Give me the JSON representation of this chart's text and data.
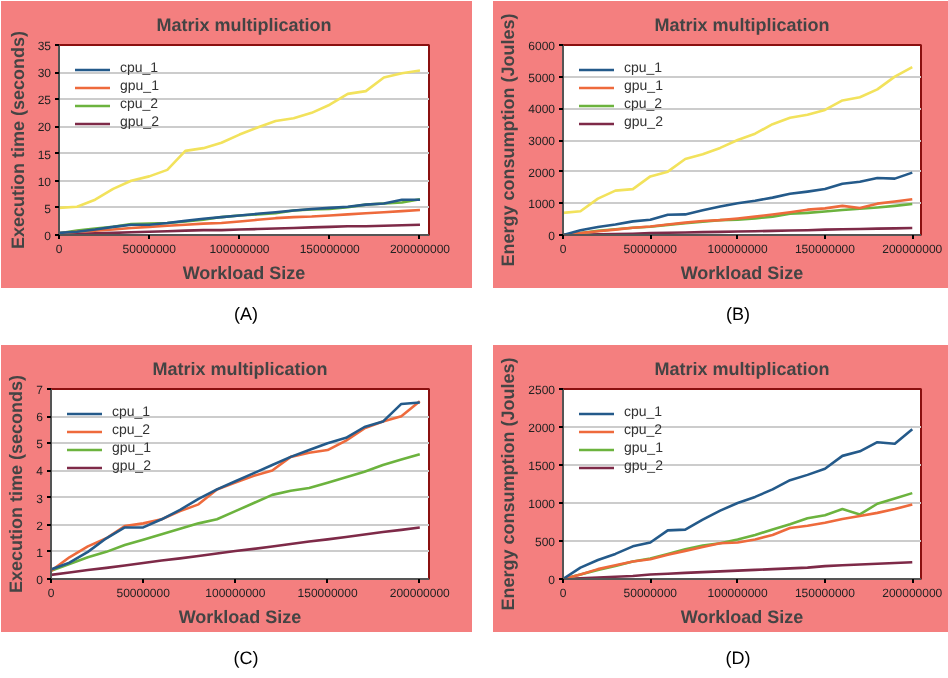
{
  "chart_data": [
    {
      "type": "line",
      "title": "Matrix multiplication",
      "xlabel": "Workload Size",
      "ylabel": "Execution time (seconds)",
      "annotations": [
        "(A)"
      ],
      "legend": "top left",
      "grid": "y",
      "x": [
        0,
        10000000,
        20000000,
        30000000,
        40000000,
        50000000,
        60000000,
        70000000,
        80000000,
        90000000,
        100000000,
        110000000,
        120000000,
        130000000,
        140000000,
        150000000,
        160000000,
        170000000,
        180000000,
        190000000,
        200000000
      ],
      "xlim": [
        0,
        205000000
      ],
      "xticks": [
        0,
        50000000,
        100000000,
        150000000,
        200000000
      ],
      "ylim": [
        0,
        35
      ],
      "yticks": [
        0,
        5,
        10,
        15,
        20,
        25,
        30,
        35
      ],
      "series": [
        {
          "name": "cpu_1",
          "color": "#245a8a",
          "values": [
            0.4,
            0.6,
            1.0,
            1.5,
            1.9,
            1.9,
            2.2,
            2.6,
            3.0,
            3.3,
            3.6,
            3.9,
            4.2,
            4.5,
            4.8,
            5.0,
            5.2,
            5.6,
            5.8,
            6.5,
            6.5
          ]
        },
        {
          "name": "gpu_1",
          "color": "#ee6a3c",
          "values": [
            0.3,
            0.6,
            0.8,
            1.0,
            1.3,
            1.5,
            1.7,
            1.9,
            2.1,
            2.2,
            2.5,
            2.8,
            3.1,
            3.3,
            3.4,
            3.6,
            3.8,
            4.0,
            4.2,
            4.4,
            4.6
          ]
        },
        {
          "color": "#f2e25c",
          "values": [
            5,
            5.2,
            6.5,
            8.5,
            10,
            10.8,
            12,
            15.5,
            16,
            17,
            18.5,
            19.8,
            21,
            21.5,
            22.5,
            24,
            26,
            26.5,
            29,
            29.8,
            30.3
          ]
        },
        {
          "name": "cpu_2",
          "color": "#6cb33e",
          "values": [
            0.3,
            0.8,
            1.2,
            1.5,
            2.0,
            2.1,
            2.2,
            2.5,
            2.8,
            3.3,
            3.6,
            3.8,
            4.0,
            4.5,
            4.7,
            4.8,
            5.1,
            5.6,
            5.8,
            6.0,
            6.6
          ]
        },
        {
          "name": "gpu_2",
          "color": "#7e2a48",
          "values": [
            0.2,
            0.2,
            0.3,
            0.4,
            0.5,
            0.6,
            0.7,
            0.8,
            0.9,
            0.9,
            1.0,
            1.1,
            1.2,
            1.3,
            1.4,
            1.5,
            1.6,
            1.6,
            1.7,
            1.8,
            1.9
          ]
        }
      ]
    },
    {
      "type": "line",
      "title": "Matrix multiplication",
      "xlabel": "Workload Size",
      "ylabel": "Energy consumption (Joules)",
      "annotations": [
        "(B)"
      ],
      "legend": "top left",
      "grid": "y",
      "x": [
        0,
        10000000,
        20000000,
        30000000,
        40000000,
        50000000,
        60000000,
        70000000,
        80000000,
        90000000,
        100000000,
        110000000,
        120000000,
        130000000,
        140000000,
        150000000,
        160000000,
        170000000,
        180000000,
        190000000,
        200000000
      ],
      "xlim": [
        0,
        205000000
      ],
      "xticks": [
        0,
        50000000,
        100000000,
        150000000,
        200000000
      ],
      "ylim": [
        0,
        6000
      ],
      "yticks": [
        0,
        1000,
        2000,
        3000,
        4000,
        5000,
        6000
      ],
      "series": [
        {
          "name": "cpu_1",
          "color": "#245a8a",
          "values": [
            0,
            150,
            250,
            330,
            430,
            480,
            640,
            650,
            780,
            900,
            1000,
            1080,
            1180,
            1300,
            1370,
            1450,
            1620,
            1680,
            1800,
            1780,
            1970
          ]
        },
        {
          "name": "gpu_1",
          "color": "#ee6a3c",
          "values": [
            0,
            60,
            120,
            170,
            230,
            270,
            330,
            390,
            440,
            470,
            520,
            580,
            650,
            720,
            800,
            840,
            920,
            850,
            990,
            1060,
            1130
          ]
        },
        {
          "color": "#f2e25c",
          "values": [
            700,
            750,
            1150,
            1400,
            1450,
            1850,
            2000,
            2400,
            2550,
            2750,
            3000,
            3200,
            3500,
            3700,
            3800,
            3950,
            4250,
            4350,
            4600,
            5000,
            5300
          ]
        },
        {
          "name": "cpu_2",
          "color": "#6cb33e",
          "values": [
            0,
            60,
            130,
            180,
            230,
            260,
            320,
            370,
            420,
            470,
            480,
            520,
            580,
            670,
            700,
            740,
            790,
            830,
            870,
            920,
            980
          ]
        },
        {
          "name": "gpu_2",
          "color": "#7e2a48",
          "values": [
            0,
            10,
            20,
            30,
            40,
            60,
            70,
            80,
            90,
            100,
            110,
            120,
            130,
            140,
            150,
            170,
            180,
            190,
            200,
            210,
            220
          ]
        }
      ]
    },
    {
      "type": "line",
      "title": "Matrix multiplication",
      "xlabel": "Workload Size",
      "ylabel": "Execution time (seconds)",
      "annotations": [
        "(C)"
      ],
      "legend": "top left",
      "grid": "y",
      "x": [
        0,
        10000000,
        20000000,
        30000000,
        40000000,
        50000000,
        60000000,
        70000000,
        80000000,
        90000000,
        100000000,
        110000000,
        120000000,
        130000000,
        140000000,
        150000000,
        160000000,
        170000000,
        180000000,
        190000000,
        200000000
      ],
      "xlim": [
        0,
        205000000
      ],
      "xticks": [
        0,
        50000000,
        100000000,
        150000000,
        200000000
      ],
      "ylim": [
        0,
        7
      ],
      "yticks": [
        0,
        1,
        2,
        3,
        4,
        5,
        6,
        7
      ],
      "series": [
        {
          "name": "cpu_1",
          "color": "#245a8a",
          "values": [
            0.35,
            0.6,
            1.0,
            1.5,
            1.9,
            1.9,
            2.2,
            2.55,
            2.95,
            3.3,
            3.6,
            3.9,
            4.2,
            4.5,
            4.75,
            5.0,
            5.2,
            5.6,
            5.8,
            6.45,
            6.5
          ]
        },
        {
          "name": "cpu_2",
          "color": "#ee6a3c",
          "values": [
            0.3,
            0.8,
            1.2,
            1.5,
            1.95,
            2.05,
            2.2,
            2.5,
            2.75,
            3.3,
            3.55,
            3.8,
            4.0,
            4.5,
            4.65,
            4.75,
            5.1,
            5.55,
            5.8,
            6.0,
            6.55
          ]
        },
        {
          "name": "gpu_1",
          "color": "#6cb33e",
          "values": [
            0.3,
            0.55,
            0.8,
            1.0,
            1.25,
            1.45,
            1.65,
            1.85,
            2.05,
            2.2,
            2.5,
            2.8,
            3.1,
            3.25,
            3.35,
            3.55,
            3.75,
            3.95,
            4.2,
            4.4,
            4.6
          ]
        },
        {
          "name": "gpu_2",
          "color": "#7e2a48",
          "values": [
            0.15,
            0.24,
            0.33,
            0.41,
            0.5,
            0.59,
            0.68,
            0.76,
            0.85,
            0.94,
            1.03,
            1.11,
            1.2,
            1.29,
            1.38,
            1.46,
            1.55,
            1.64,
            1.73,
            1.81,
            1.9
          ]
        }
      ]
    },
    {
      "type": "line",
      "title": "Matrix multiplication",
      "xlabel": "Workload Size",
      "ylabel": "Energy consumption (Joules)",
      "annotations": [
        "(D)"
      ],
      "legend": "top left",
      "grid": "y",
      "x": [
        0,
        10000000,
        20000000,
        30000000,
        40000000,
        50000000,
        60000000,
        70000000,
        80000000,
        90000000,
        100000000,
        110000000,
        120000000,
        130000000,
        140000000,
        150000000,
        160000000,
        170000000,
        180000000,
        190000000,
        200000000
      ],
      "xlim": [
        0,
        205000000
      ],
      "xticks": [
        0,
        50000000,
        100000000,
        150000000,
        200000000
      ],
      "ylim": [
        0,
        2500
      ],
      "yticks": [
        0,
        500,
        1000,
        1500,
        2000,
        2500
      ],
      "series": [
        {
          "name": "cpu_1",
          "color": "#245a8a",
          "values": [
            0,
            150,
            250,
            330,
            430,
            480,
            640,
            650,
            780,
            900,
            1000,
            1080,
            1180,
            1300,
            1370,
            1450,
            1620,
            1680,
            1800,
            1780,
            1970
          ]
        },
        {
          "name": "cpu_2",
          "color": "#ee6a3c",
          "values": [
            0,
            60,
            130,
            180,
            230,
            260,
            320,
            370,
            420,
            470,
            480,
            520,
            580,
            670,
            700,
            740,
            790,
            830,
            870,
            920,
            980
          ]
        },
        {
          "name": "gpu_1",
          "color": "#6cb33e",
          "values": [
            0,
            60,
            120,
            170,
            230,
            270,
            330,
            390,
            440,
            470,
            520,
            580,
            650,
            720,
            800,
            840,
            920,
            850,
            990,
            1060,
            1130
          ]
        },
        {
          "name": "gpu_2",
          "color": "#7e2a48",
          "values": [
            0,
            10,
            20,
            30,
            40,
            60,
            70,
            80,
            90,
            100,
            110,
            120,
            130,
            140,
            150,
            170,
            180,
            190,
            200,
            210,
            220
          ]
        }
      ]
    }
  ]
}
